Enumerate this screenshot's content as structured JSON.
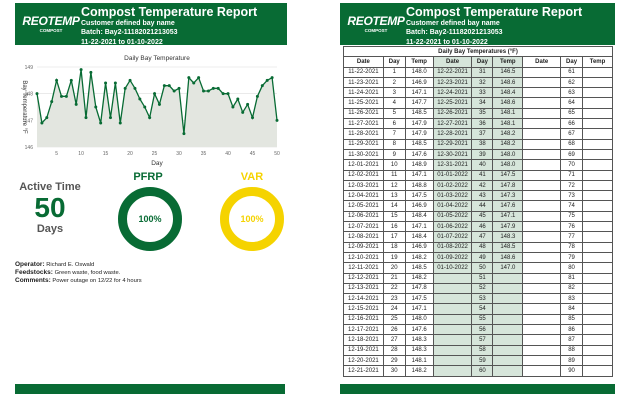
{
  "header": {
    "logo": "REOTEMP",
    "logo_sub": "COMPOST",
    "title": "Compost Temperature Report",
    "bay": "Customer defined bay name",
    "batch": "Batch: Bay2-11182021213053",
    "range": "11-22-2021 to 01-10-2022"
  },
  "chart_data": {
    "type": "area",
    "title": "Daily Bay Temperature",
    "xlabel": "Day",
    "ylabel": "Bay Temperature °F",
    "ylim": [
      146,
      149
    ],
    "xlim": [
      1,
      50
    ],
    "yticks": [
      146,
      147,
      148,
      149
    ],
    "xticks": [
      5,
      10,
      15,
      20,
      25,
      30,
      35,
      40,
      45,
      50
    ],
    "x": [
      1,
      2,
      3,
      4,
      5,
      6,
      7,
      8,
      9,
      10,
      11,
      12,
      13,
      14,
      15,
      16,
      17,
      18,
      19,
      20,
      21,
      22,
      23,
      24,
      25,
      26,
      27,
      28,
      29,
      30,
      31,
      32,
      33,
      34,
      35,
      36,
      37,
      38,
      39,
      40,
      41,
      42,
      43,
      44,
      45,
      46,
      47,
      48,
      49,
      50
    ],
    "values": [
      148.0,
      146.9,
      147.1,
      147.7,
      148.5,
      147.9,
      147.9,
      148.5,
      147.6,
      148.9,
      147.1,
      148.8,
      147.5,
      146.9,
      148.4,
      147.1,
      148.4,
      146.9,
      148.2,
      148.5,
      148.2,
      147.8,
      147.5,
      147.1,
      148.0,
      147.6,
      148.3,
      148.3,
      148.1,
      148.2,
      146.5,
      148.6,
      148.4,
      148.6,
      148.1,
      148.1,
      148.2,
      148.2,
      148.0,
      148.0,
      147.5,
      147.8,
      147.3,
      147.6,
      147.1,
      147.9,
      148.3,
      148.5,
      148.6,
      147.0
    ]
  },
  "stats": {
    "active_label": "Active Time",
    "active_value": "50",
    "active_unit": "Days",
    "pfrp_label": "PFRP",
    "pfrp_value": "100%",
    "pfrp_fraction": 1.0,
    "var_label": "VAR",
    "var_value": "100%",
    "var_fraction": 1.0
  },
  "info": {
    "operator_label": "Operator:",
    "operator": "Richard E. Oswald",
    "feed_label": "Feedstocks:",
    "feed": "Green waste, food waste.",
    "comments_label": "Comments:",
    "comments": "Power outage on 12/22 for 4 hours"
  },
  "table": {
    "title": "Daily Bay Temperatures (°F)",
    "headers": [
      "Date",
      "Day",
      "Temp",
      "Date",
      "Day",
      "Temp",
      "Date",
      "Day",
      "Temp"
    ],
    "dates": [
      "11-22-2021",
      "11-23-2021",
      "11-24-2021",
      "11-25-2021",
      "11-26-2021",
      "11-27-2021",
      "11-28-2021",
      "11-29-2021",
      "11-30-2021",
      "12-01-2021",
      "12-02-2021",
      "12-03-2021",
      "12-04-2021",
      "12-05-2021",
      "12-06-2021",
      "12-07-2021",
      "12-08-2021",
      "12-09-2021",
      "12-10-2021",
      "12-11-2021",
      "12-12-2021",
      "12-13-2021",
      "12-14-2021",
      "12-15-2021",
      "12-16-2021",
      "12-17-2021",
      "12-18-2021",
      "12-19-2021",
      "12-20-2021",
      "12-21-2021",
      "12-22-2021",
      "12-23-2021",
      "12-24-2021",
      "12-25-2021",
      "12-26-2021",
      "12-27-2021",
      "12-28-2021",
      "12-29-2021",
      "12-30-2021",
      "12-31-2021",
      "01-01-2022",
      "01-02-2022",
      "01-03-2022",
      "01-04-2022",
      "01-05-2022",
      "01-06-2022",
      "01-07-2022",
      "01-08-2022",
      "01-09-2022",
      "01-10-2022"
    ]
  },
  "colors": {
    "green": "#086b34",
    "yellow": "#f5d300"
  }
}
